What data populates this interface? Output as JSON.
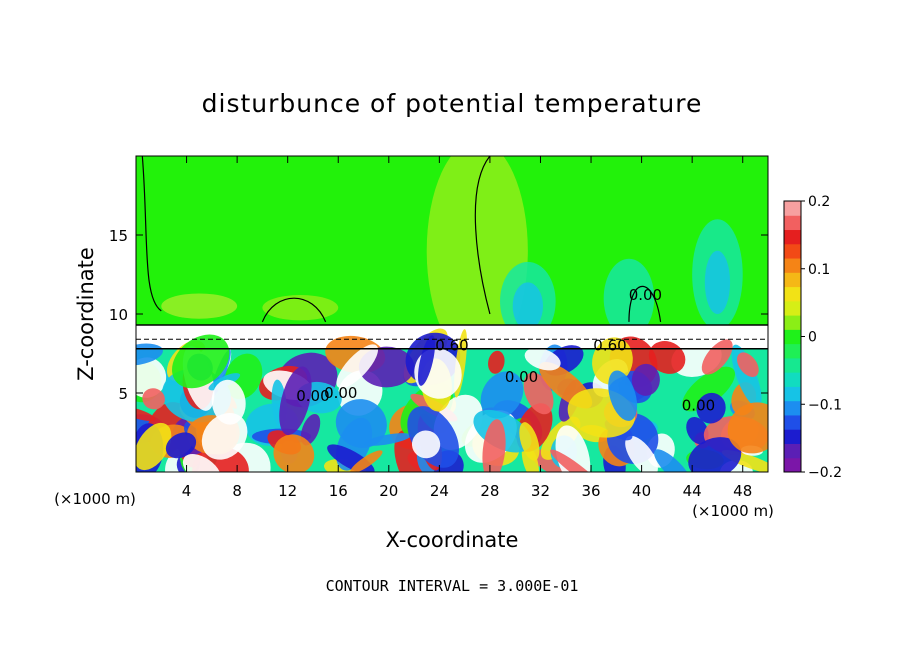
{
  "chart_data": {
    "type": "heatmap",
    "title": "disturbunce of potential temperature",
    "xlabel": "X-coordinate",
    "ylabel": "Z-coordinate",
    "x_unit": "(×1000 m)",
    "xlim": [
      0,
      50
    ],
    "ylim": [
      0,
      20
    ],
    "x_ticks": [
      4,
      8,
      12,
      16,
      20,
      24,
      28,
      32,
      36,
      40,
      44,
      48
    ],
    "y_ticks": [
      5,
      10,
      15
    ],
    "colorbar": {
      "range": [
        -0.2,
        0.2
      ],
      "tick_values": [
        0.2,
        0.1,
        0,
        -0.1,
        -0.2
      ],
      "tick_labels": [
        "0.2",
        "0.1",
        "0",
        "−0.1",
        "−0.2"
      ],
      "colors": [
        "#7b16a8",
        "#5b1fb5",
        "#1c1ccf",
        "#1f4fe8",
        "#1c8ef0",
        "#16c3e6",
        "#11dcc0",
        "#16e890",
        "#1fef55",
        "#1ff11a",
        "#8bee16",
        "#d6ee16",
        "#f2e216",
        "#f5b816",
        "#f58416",
        "#f24a16",
        "#e51f1f",
        "#f26060",
        "#f7a0a0"
      ]
    },
    "contour_labels": [
      {
        "x": 25.0,
        "z": 8.0,
        "text": "0.60"
      },
      {
        "x": 37.5,
        "z": 8.0,
        "text": "0.60"
      },
      {
        "x": 40.3,
        "z": 11.2,
        "text": "0.00"
      },
      {
        "x": 14.0,
        "z": 4.8,
        "text": "0.00"
      },
      {
        "x": 16.2,
        "z": 5.0,
        "text": "0.00"
      },
      {
        "x": 30.5,
        "z": 6.0,
        "text": "0.00"
      },
      {
        "x": 44.5,
        "z": 4.2,
        "text": "0.00"
      }
    ],
    "annotation": "CONTOUR INTERVAL = 3.000E-01"
  },
  "colors": {
    "background_green": "#22f20a",
    "frame": "#000000"
  }
}
